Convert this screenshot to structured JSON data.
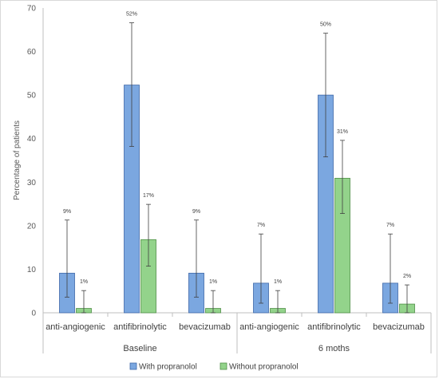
{
  "chart_data": {
    "type": "bar",
    "ylabel": "Percentage of patients",
    "ylim": [
      0,
      70
    ],
    "yticks": [
      0,
      10,
      20,
      30,
      40,
      50,
      60,
      70
    ],
    "groups": [
      {
        "label": "Baseline",
        "categories": [
          "anti-angiogenic",
          "antifibrinolytic",
          "bevacizumab"
        ]
      },
      {
        "label": "6 moths",
        "categories": [
          "anti-angiogenic",
          "antifibrinolytic",
          "bevacizumab"
        ]
      }
    ],
    "series": [
      {
        "name": "With propranolol",
        "color": "#7ba7e0",
        "stroke": "#3f68a8",
        "values": [
          9.1,
          52.3,
          9.1,
          6.8,
          50.0,
          6.8
        ],
        "labels": [
          "9%",
          "52%",
          "9%",
          "7%",
          "50%",
          "7%"
        ],
        "err_low": [
          3.6,
          38.2,
          3.6,
          2.2,
          35.8,
          2.2
        ],
        "err_high": [
          21.3,
          66.6,
          21.3,
          18.1,
          64.2,
          18.1
        ]
      },
      {
        "name": "Without propranolol",
        "color": "#93d38b",
        "stroke": "#4f8f46",
        "values": [
          1.0,
          16.8,
          1.0,
          1.0,
          30.9,
          2.0
        ],
        "labels": [
          "1%",
          "17%",
          "1%",
          "1%",
          "31%",
          "2%"
        ],
        "err_low": [
          0.0,
          10.7,
          0.0,
          0.0,
          22.8,
          0.0
        ],
        "err_high": [
          5.1,
          24.9,
          5.1,
          5.1,
          39.6,
          6.4
        ]
      }
    ],
    "legend_position": "bottom-center",
    "grid": false
  }
}
